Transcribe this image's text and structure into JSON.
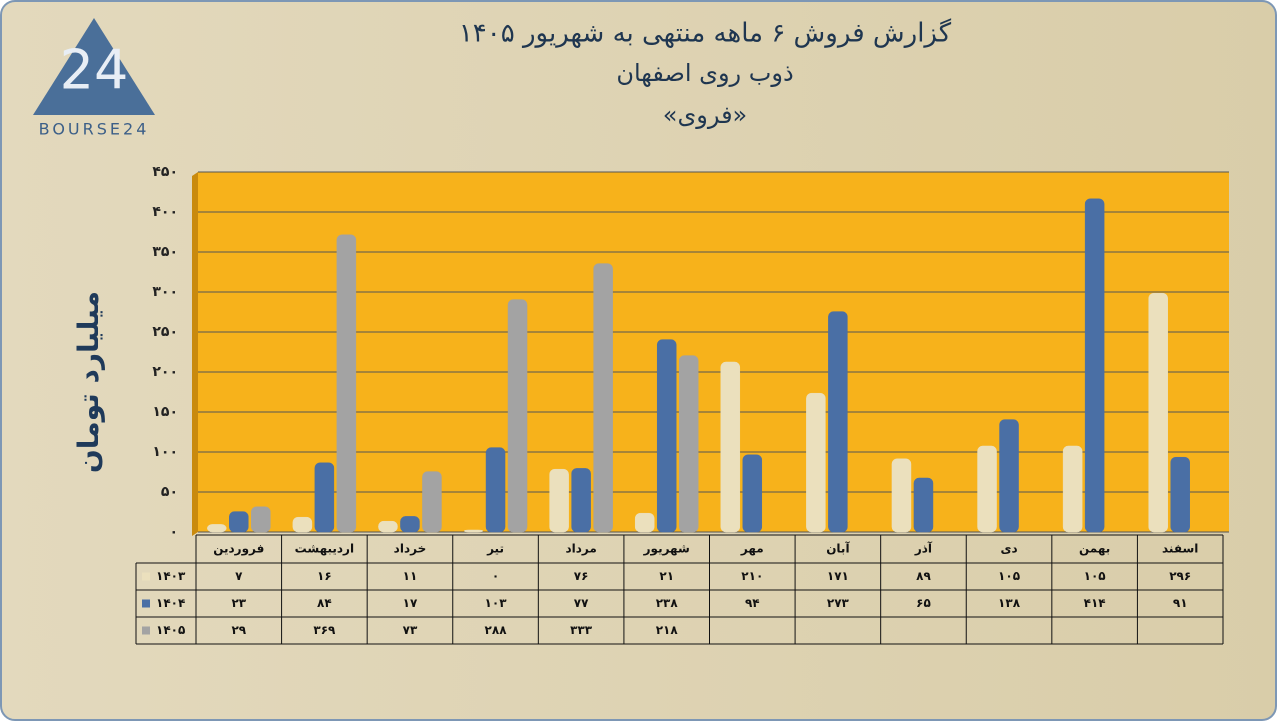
{
  "logo": {
    "mark": "24",
    "name": "BOURSE24"
  },
  "chart_data": {
    "type": "bar",
    "title": "گزارش  فروش ۶ ماهه منتهی به شهریور ۱۴۰۵",
    "subtitle": "ذوب روی اصفهان",
    "symbol": "«فروی»",
    "y_label": "میلیارد تومان",
    "categories": [
      "فروردین",
      "اردیبهشت",
      "خرداد",
      "تیر",
      "مرداد",
      "شهریور",
      "مهر",
      "آبان",
      "آذر",
      "دی",
      "بهمن",
      "اسفند"
    ],
    "series": [
      {
        "name": "۱۴۰۳",
        "color": "#ebe0bd",
        "values": [
          7,
          16,
          11,
          0,
          76,
          21,
          210,
          171,
          89,
          105,
          105,
          296
        ],
        "value_labels": [
          "۷",
          "۱۶",
          "۱۱",
          "۰",
          "۷۶",
          "۲۱",
          "۲۱۰",
          "۱۷۱",
          "۸۹",
          "۱۰۵",
          "۱۰۵",
          "۲۹۶"
        ]
      },
      {
        "name": "۱۴۰۴",
        "color": "#4a6fa5",
        "values": [
          23,
          84,
          17,
          103,
          77,
          238,
          94,
          273,
          65,
          138,
          414,
          91
        ],
        "value_labels": [
          "۲۳",
          "۸۴",
          "۱۷",
          "۱۰۳",
          "۷۷",
          "۲۳۸",
          "۹۴",
          "۲۷۳",
          "۶۵",
          "۱۳۸",
          "۴۱۴",
          "۹۱"
        ]
      },
      {
        "name": "۱۴۰۵",
        "color": "#a3a3a3",
        "values": [
          29,
          369,
          73,
          288,
          333,
          218,
          null,
          null,
          null,
          null,
          null,
          null
        ],
        "value_labels": [
          "۲۹",
          "۳۶۹",
          "۷۳",
          "۲۸۸",
          "۳۳۳",
          "۲۱۸",
          null,
          null,
          null,
          null,
          null,
          null
        ]
      }
    ],
    "ylim": [
      0,
      450
    ],
    "yticks": [
      {
        "value": 0,
        "label": "۰"
      },
      {
        "value": 50,
        "label": "۵۰"
      },
      {
        "value": 100,
        "label": "۱۰۰"
      },
      {
        "value": 150,
        "label": "۱۵۰"
      },
      {
        "value": 200,
        "label": "۲۰۰"
      },
      {
        "value": 250,
        "label": "۲۵۰"
      },
      {
        "value": 300,
        "label": "۳۰۰"
      },
      {
        "value": 350,
        "label": "۳۵۰"
      },
      {
        "value": 400,
        "label": "۴۰۰"
      },
      {
        "value": 450,
        "label": "۴۵۰"
      }
    ],
    "grid": true
  }
}
